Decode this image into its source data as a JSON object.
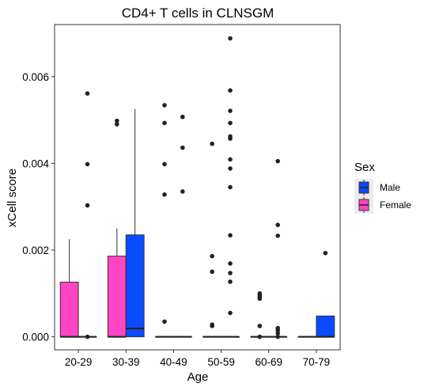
{
  "chart_data": {
    "type": "boxplot",
    "title": "CD4+ T cells in CLNSGM",
    "xlabel": "Age",
    "ylabel": "xCell score",
    "categories": [
      "20-29",
      "30-39",
      "40-49",
      "50-59",
      "60-69",
      "70-79"
    ],
    "ylim": [
      -0.0003,
      0.0072
    ],
    "yticks": [
      0.0,
      0.002,
      0.004,
      0.006
    ],
    "ytick_labels": [
      "0.000",
      "0.002",
      "0.004",
      "0.006"
    ],
    "grid": false,
    "legend": {
      "title": "Sex",
      "position": "right",
      "entries": [
        {
          "name": "Male",
          "color": "#0A4BFF"
        },
        {
          "name": "Female",
          "color": "#FF44C4"
        }
      ]
    },
    "series": [
      {
        "name": "Female",
        "color": "#FF44C4",
        "boxes": [
          {
            "category": "20-29",
            "lower": 0.0,
            "q1": 0.0,
            "median": 0.0,
            "q3": 0.00126,
            "upper": 0.00225,
            "outliers": []
          },
          {
            "category": "30-39",
            "lower": 0.0,
            "q1": 0.0,
            "median": 0.0,
            "q3": 0.00186,
            "upper": 0.0025,
            "outliers": [
              0.0049,
              0.00498
            ]
          },
          {
            "category": "40-49",
            "lower": 0.0,
            "q1": 0.0,
            "median": 0.0,
            "q3": 0.0,
            "upper": 0.0,
            "outliers": [
              0.00035,
              0.00328,
              0.00398,
              0.00493,
              0.00534
            ]
          },
          {
            "category": "50-59",
            "lower": 0.0,
            "q1": 0.0,
            "median": 0.0,
            "q3": 0.0,
            "upper": 0.0,
            "outliers": [
              0.00025,
              0.00028,
              0.0015,
              0.00186,
              0.00445
            ]
          },
          {
            "category": "60-69",
            "lower": 0.0,
            "q1": 0.0,
            "median": 0.0,
            "q3": 0.0,
            "upper": 0.0,
            "outliers": [
              0.0,
              0.00025,
              0.00088,
              0.00092,
              0.00096,
              0.001
            ]
          },
          {
            "category": "70-79",
            "lower": 0.0,
            "q1": 0.0,
            "median": 0.0,
            "q3": 0.0,
            "upper": 0.0,
            "outliers": []
          }
        ]
      },
      {
        "name": "Male",
        "color": "#0A4BFF",
        "boxes": [
          {
            "category": "20-29",
            "lower": 0.0,
            "q1": 0.0,
            "median": 0.0,
            "q3": 0.0,
            "upper": 0.0,
            "outliers": [
              0.0,
              0.00303,
              0.00398,
              0.00561
            ]
          },
          {
            "category": "30-39",
            "lower": 0.0,
            "q1": 0.0,
            "median": 0.00019,
            "q3": 0.00235,
            "upper": 0.00525,
            "outliers": []
          },
          {
            "category": "40-49",
            "lower": 0.0,
            "q1": 0.0,
            "median": 0.0,
            "q3": 0.0,
            "upper": 0.0,
            "outliers": [
              0.00335,
              0.00436,
              0.00507
            ]
          },
          {
            "category": "50-59",
            "lower": 0.0,
            "q1": 0.0,
            "median": 0.0,
            "q3": 0.0,
            "upper": 0.0,
            "outliers": [
              0.00055,
              0.00127,
              0.00147,
              0.00169,
              0.00234,
              0.00345,
              0.00388,
              0.00409,
              0.00457,
              0.00462,
              0.00493,
              0.00521,
              0.00568,
              0.00688
            ]
          },
          {
            "category": "60-69",
            "lower": 0.0,
            "q1": 0.0,
            "median": 0.0,
            "q3": 0.0,
            "upper": 0.0,
            "outliers": [
              0.0,
              8e-05,
              0.00015,
              0.0002,
              0.00233,
              0.00258,
              0.00405
            ]
          },
          {
            "category": "70-79",
            "lower": 0.0,
            "q1": 0.0,
            "median": 0.0,
            "q3": 0.00048,
            "upper": 0.00048,
            "outliers": [
              0.00193
            ]
          }
        ]
      }
    ]
  }
}
